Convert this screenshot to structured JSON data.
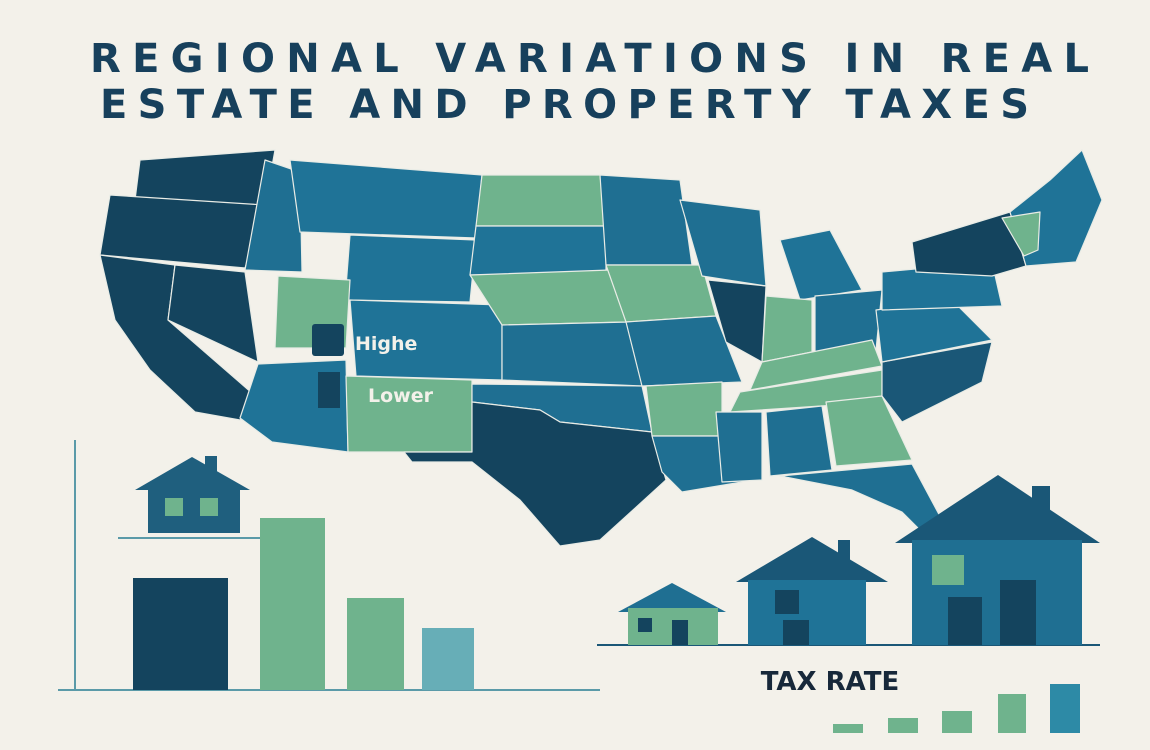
{
  "title": [
    "REGIONAL VARIATIONS IN REAL",
    "ESTATE AND PROPERTY TAXES"
  ],
  "legend": {
    "items": [
      {
        "label": "Highe"
      },
      {
        "label": "Lower"
      }
    ]
  },
  "tax_rate_label": "TAX RATE"
}
